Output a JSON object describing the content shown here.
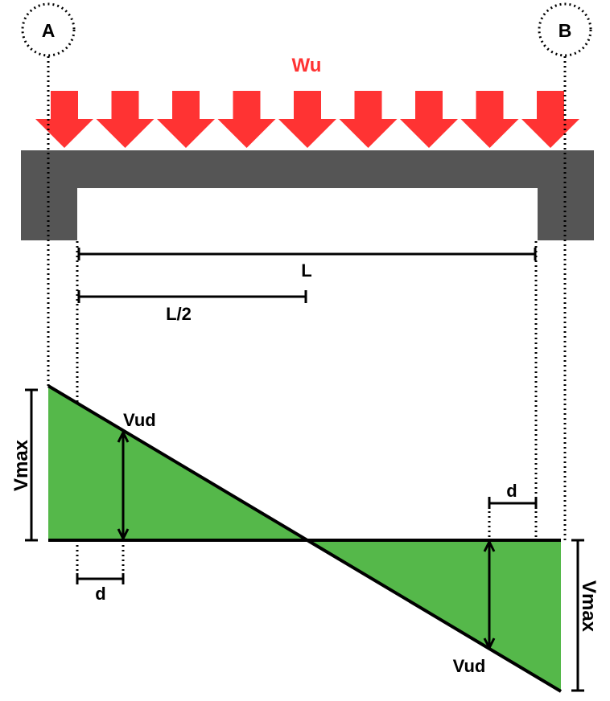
{
  "supports": {
    "left_label": "A",
    "right_label": "B"
  },
  "load": {
    "label": "Wu",
    "arrow_count": 9
  },
  "dimensions": {
    "span_label": "L",
    "half_span_label": "L/2",
    "d_left_label": "d",
    "d_right_label": "d"
  },
  "shear_diagram": {
    "vmax_left_label": "Vmax",
    "vmax_right_label": "Vmax",
    "vud_left_label": "Vud",
    "vud_right_label": "Vud"
  },
  "colors": {
    "load": "#ff3333",
    "beam": "#555555",
    "shear_fill": "#55b84a",
    "line": "#000000"
  }
}
